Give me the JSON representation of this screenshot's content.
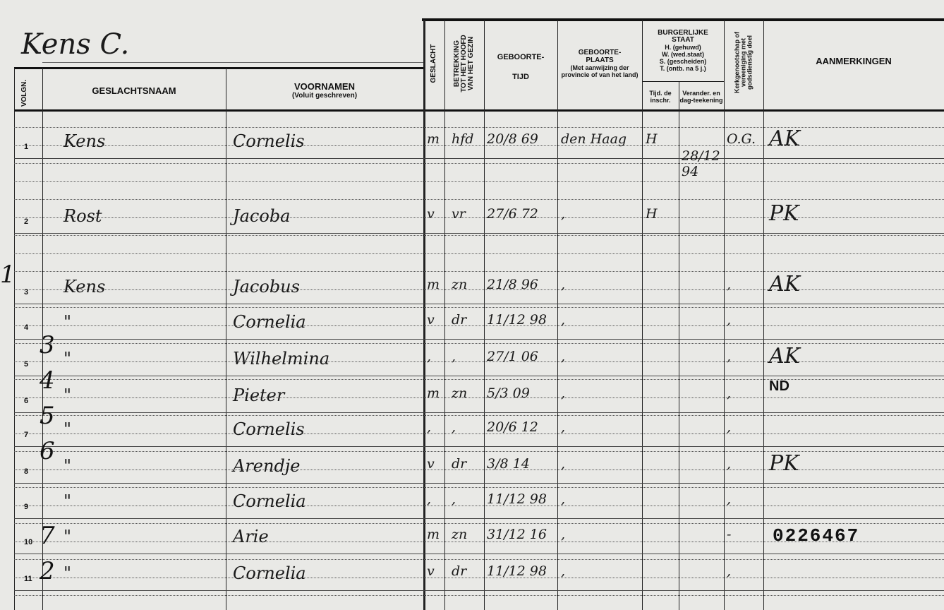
{
  "household_name": "Kens C.",
  "headers": {
    "volgn": "VOLGN.",
    "geslachtsnaam": "GESLACHTSNAAM",
    "voornamen": "VOORNAMEN",
    "voornamen_sub": "(Voluit geschreven)",
    "geslacht": "GESLACHT",
    "betrekking": [
      "BETREKKING",
      "TOT HET HOOFD",
      "VAN HET GEZIN"
    ],
    "geboortetijd": [
      "GEBOORTE-",
      "TIJD"
    ],
    "geboorteplaats": [
      "GEBOORTE-",
      "PLAATS"
    ],
    "geboorteplaats_sub": "(Met aanwijzing der provincie of van het land)",
    "burgerlijke_staat": [
      "BURGERLIJKE",
      "STAAT"
    ],
    "burgerlijke_staat_sub": [
      "H. (gehuwd)",
      "W. (wed.staat)",
      "S. (gescheiden)",
      "T. (ontb. na 5 j.)"
    ],
    "tijd_inschr": "Tijd. de inschr.",
    "verander": "Verander. en dag-teekening",
    "kerkgenootschap": [
      "Kerkgenootschap of",
      "vereeniging met",
      "godsdienstig doel"
    ],
    "aanmerkingen": "AANMERKINGEN"
  },
  "rows": [
    {
      "n": "1",
      "surname": "Kens",
      "first": "Cornelis",
      "sex": "m",
      "rel": "hfd",
      "born": "20/8 69",
      "place": "den Haag",
      "state": "H",
      "change": "28/12 94",
      "church": "O.G.",
      "note": "AK"
    },
    {
      "n": "2",
      "surname": "Rost",
      "first": "Jacoba",
      "sex": "v",
      "rel": "vr",
      "born": "27/6 72",
      "place": ",",
      "state": "H",
      "change": "",
      "church": "",
      "note": "PK"
    },
    {
      "n": "3",
      "surname": "Kens",
      "first": "Jacobus",
      "sex": "m",
      "rel": "zn",
      "born": "21/8 96",
      "place": ",",
      "state": "",
      "change": "",
      "church": ",",
      "note": "AK"
    },
    {
      "n": "4",
      "surname": "\"",
      "first": "Cornelia",
      "sex": "v",
      "rel": "dr",
      "born": "11/12 98",
      "place": ",",
      "state": "",
      "change": "",
      "church": ",",
      "note": ""
    },
    {
      "n": "5",
      "surname": "\"",
      "first": "Wilhelmina",
      "sex": ",",
      "rel": ",",
      "born": "27/1 06",
      "place": ",",
      "state": "",
      "change": "",
      "church": ",",
      "note": "AK"
    },
    {
      "n": "6",
      "surname": "\"",
      "first": "Pieter",
      "sex": "m",
      "rel": "zn",
      "born": "5/3 09",
      "place": ",",
      "state": "",
      "change": "",
      "church": ",",
      "note": "ND"
    },
    {
      "n": "7",
      "surname": "\"",
      "first": "Cornelis",
      "sex": ",",
      "rel": ",",
      "born": "20/6 12",
      "place": ",",
      "state": "",
      "change": "",
      "church": ",",
      "note": ""
    },
    {
      "n": "8",
      "surname": "\"",
      "first": "Arendje",
      "sex": "v",
      "rel": "dr",
      "born": "3/8 14",
      "place": ",",
      "state": "",
      "change": "",
      "church": ",",
      "note": "PK"
    },
    {
      "n": "9",
      "surname": "\"",
      "first": "Cornelia",
      "sex": ",",
      "rel": ",",
      "born": "11/12 98",
      "place": ",",
      "state": "",
      "change": "",
      "church": ",",
      "note": ""
    },
    {
      "n": "10",
      "surname": "\"",
      "first": "Arie",
      "sex": "m",
      "rel": "zn",
      "born": "31/12 16",
      "place": ",",
      "state": "",
      "change": "",
      "church": "-",
      "note": "0226467"
    },
    {
      "n": "11",
      "surname": "\"",
      "first": "Cornelia",
      "sex": "v",
      "rel": "dr",
      "born": "11/12 98",
      "place": ",",
      "state": "",
      "change": "",
      "church": ",",
      "note": ""
    }
  ],
  "margin_numbers": [
    "1",
    "3",
    "4",
    "5",
    "6",
    "7",
    "2"
  ]
}
